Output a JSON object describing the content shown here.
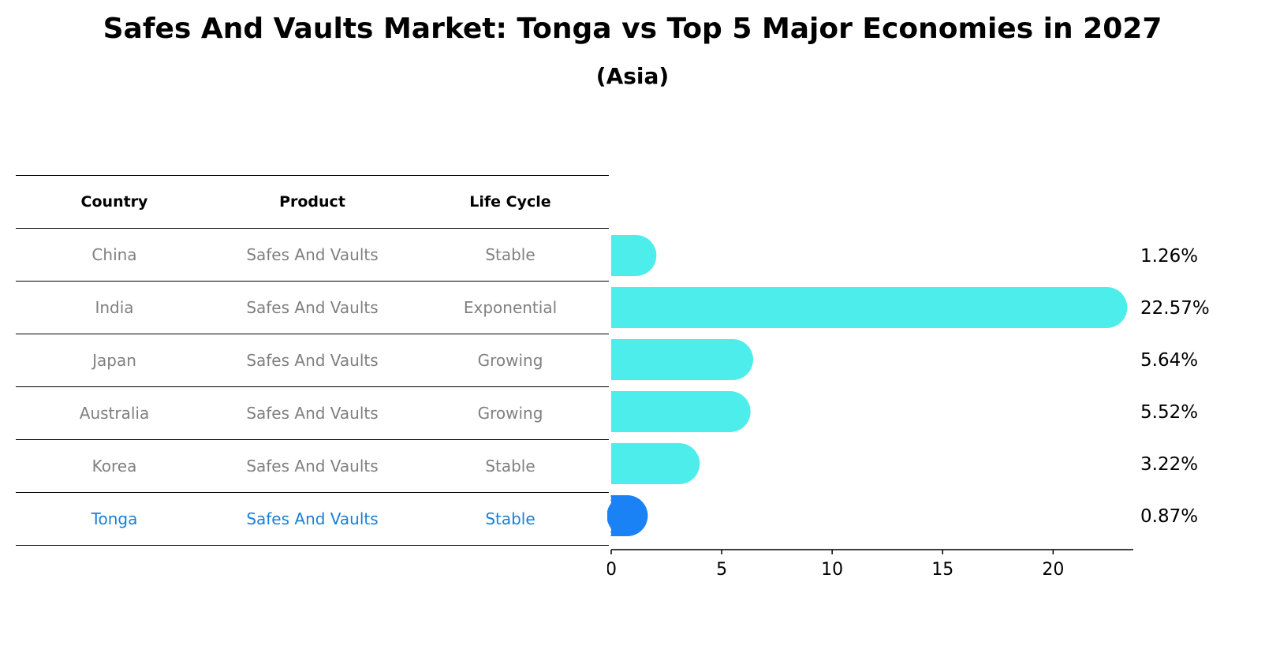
{
  "title": "Safes And Vaults Market: Tonga vs Top 5 Major Economies in 2027",
  "subtitle": "(Asia)",
  "table": {
    "headers": [
      "Country",
      "Product",
      "Life Cycle"
    ],
    "rows": [
      [
        "China",
        "Safes And Vaults",
        "Stable"
      ],
      [
        "India",
        "Safes And Vaults",
        "Exponential"
      ],
      [
        "Japan",
        "Safes And Vaults",
        "Growing"
      ],
      [
        "Australia",
        "Safes And Vaults",
        "Growing"
      ],
      [
        "Korea",
        "Safes And Vaults",
        "Stable"
      ],
      [
        "Tonga",
        "Safes And Vaults",
        "Stable"
      ]
    ],
    "highlight_row": 5
  },
  "colors": {
    "bar": "#4dedeb",
    "highlight_bar": "#1a82f5",
    "highlight_text": "#1a7fd6",
    "muted_text": "#808080"
  },
  "chart_data": {
    "type": "bar",
    "orientation": "horizontal",
    "categories": [
      "China",
      "India",
      "Japan",
      "Australia",
      "Korea",
      "Tonga"
    ],
    "values": [
      1.26,
      22.57,
      5.64,
      5.52,
      3.22,
      0.87
    ],
    "value_labels": [
      "1.26%",
      "22.57%",
      "5.64%",
      "5.52%",
      "3.22%",
      "0.87%"
    ],
    "highlight": "Tonga",
    "xlim": [
      0,
      23.7
    ],
    "xticks": [
      0,
      5,
      10,
      15,
      20
    ],
    "xlabel": "",
    "ylabel": "",
    "grid": false
  }
}
